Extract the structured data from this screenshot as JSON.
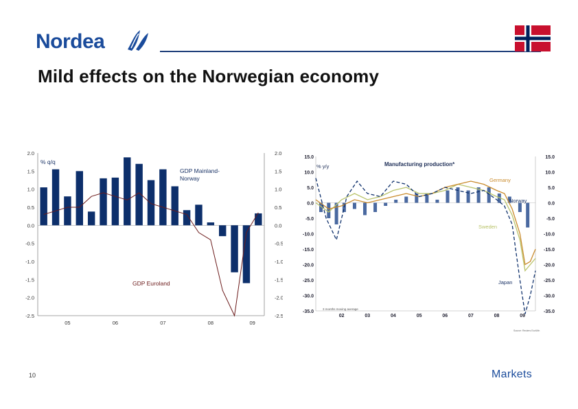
{
  "header": {
    "logo_text": "Nordea",
    "title": "Mild effects on the Norwegian economy",
    "flag_icon": "norway-flag-icon"
  },
  "footer": {
    "page_number": "10",
    "brand": "Markets"
  },
  "colors": {
    "brand_blue": "#1a4b9b",
    "bar_navy": "#0d2f6b",
    "euro_red": "#6b1a1a",
    "japan_blue": "#0d2f6b",
    "germany_orange": "#c98a2b",
    "sweden_green": "#b9c36a",
    "norway_bar": "#2a4f8f"
  },
  "chart_data": [
    {
      "type": "bar",
      "unit_label": "% q/q",
      "ylim": [
        -2.5,
        2.0
      ],
      "yticks": [
        "2.0",
        "1.5",
        "1.0",
        "0.5",
        "0.0",
        "-0.5",
        "-1.0",
        "-1.5",
        "-2.0",
        "-2.5"
      ],
      "xticks": [
        {
          "label": "05",
          "pos": 2.5
        },
        {
          "label": "06",
          "pos": 6.5
        },
        {
          "label": "07",
          "pos": 10.5
        },
        {
          "label": "08",
          "pos": 14.5
        },
        {
          "label": "09",
          "pos": 18
        }
      ],
      "series": [
        {
          "name": "GDP Mainland-Norway",
          "kind": "bar",
          "values": [
            1.05,
            1.55,
            0.8,
            1.5,
            0.38,
            1.3,
            1.32,
            1.88,
            1.7,
            1.25,
            1.55,
            1.08,
            0.42,
            0.57,
            0.08,
            -0.3,
            -1.3,
            -1.6,
            0.33
          ]
        },
        {
          "name": "GDP Euroland",
          "kind": "line",
          "values": [
            0.3,
            0.4,
            0.5,
            0.5,
            0.8,
            0.9,
            0.8,
            0.7,
            0.9,
            0.6,
            0.5,
            0.4,
            0.3,
            -0.2,
            -0.4,
            -1.8,
            -2.5,
            -0.2,
            0.35
          ]
        }
      ]
    },
    {
      "type": "line",
      "title": "Manufacturing production*",
      "unit_label": "% y/y",
      "ylim": [
        -35,
        15
      ],
      "yticks": [
        "15.0",
        "10.0",
        "5.0",
        "0.0",
        "-5.0",
        "-10.0",
        "-15.0",
        "-20.0",
        "-25.0",
        "-30.0",
        "-35.0"
      ],
      "xlim": [
        2001,
        2009.5
      ],
      "xticks": [
        "02",
        "03",
        "04",
        "05",
        "06",
        "07",
        "08",
        "09"
      ],
      "note": "3 months moving average",
      "source": "Source: Reuters EcoWin",
      "series": [
        {
          "name": "Norway",
          "kind": "bar",
          "x": [
            2001.2,
            2001.5,
            2001.8,
            2002.1,
            2002.5,
            2002.9,
            2003.3,
            2003.7,
            2004.1,
            2004.5,
            2004.9,
            2005.3,
            2005.7,
            2006.1,
            2006.5,
            2006.9,
            2007.3,
            2007.7,
            2008.1,
            2008.5,
            2008.9,
            2009.2
          ],
          "y": [
            -3,
            -5,
            -7,
            -3,
            -2,
            -4,
            -3,
            -1,
            1,
            2,
            3,
            3,
            1,
            4,
            5,
            4,
            5,
            5,
            3,
            2,
            -3,
            -8
          ]
        },
        {
          "name": "Germany",
          "kind": "line",
          "x": [
            2001,
            2001.5,
            2002,
            2002.5,
            2003,
            2003.5,
            2004,
            2004.5,
            2005,
            2005.5,
            2006,
            2006.5,
            2007,
            2007.5,
            2008,
            2008.3,
            2008.6,
            2008.9,
            2009.1,
            2009.3,
            2009.5
          ],
          "y": [
            1,
            -2,
            -1,
            1,
            0,
            1,
            2,
            3,
            2,
            3,
            5,
            6,
            7,
            6,
            4,
            3,
            -2,
            -10,
            -20,
            -19,
            -15
          ]
        },
        {
          "name": "Sweden",
          "kind": "line",
          "x": [
            2001,
            2001.5,
            2002,
            2002.5,
            2003,
            2003.5,
            2004,
            2004.5,
            2005,
            2005.5,
            2006,
            2006.5,
            2007,
            2007.5,
            2008,
            2008.3,
            2008.6,
            2008.9,
            2009.1,
            2009.3,
            2009.5
          ],
          "y": [
            0,
            -3,
            1,
            3,
            1,
            2,
            4,
            5,
            3,
            3,
            4,
            6,
            5,
            4,
            2,
            1,
            -4,
            -12,
            -22,
            -20,
            -18
          ]
        },
        {
          "name": "Japan",
          "kind": "line",
          "x": [
            2001,
            2001.4,
            2001.8,
            2002.2,
            2002.6,
            2003,
            2003.5,
            2004,
            2004.5,
            2005,
            2005.5,
            2006,
            2006.5,
            2007,
            2007.5,
            2008,
            2008.3,
            2008.6,
            2008.9,
            2009.1,
            2009.3,
            2009.5
          ],
          "y": [
            8,
            -5,
            -12,
            2,
            7,
            3,
            2,
            7,
            6,
            2,
            3,
            5,
            4,
            3,
            4,
            1,
            -1,
            -7,
            -25,
            -36,
            -30,
            -22
          ]
        }
      ]
    }
  ]
}
